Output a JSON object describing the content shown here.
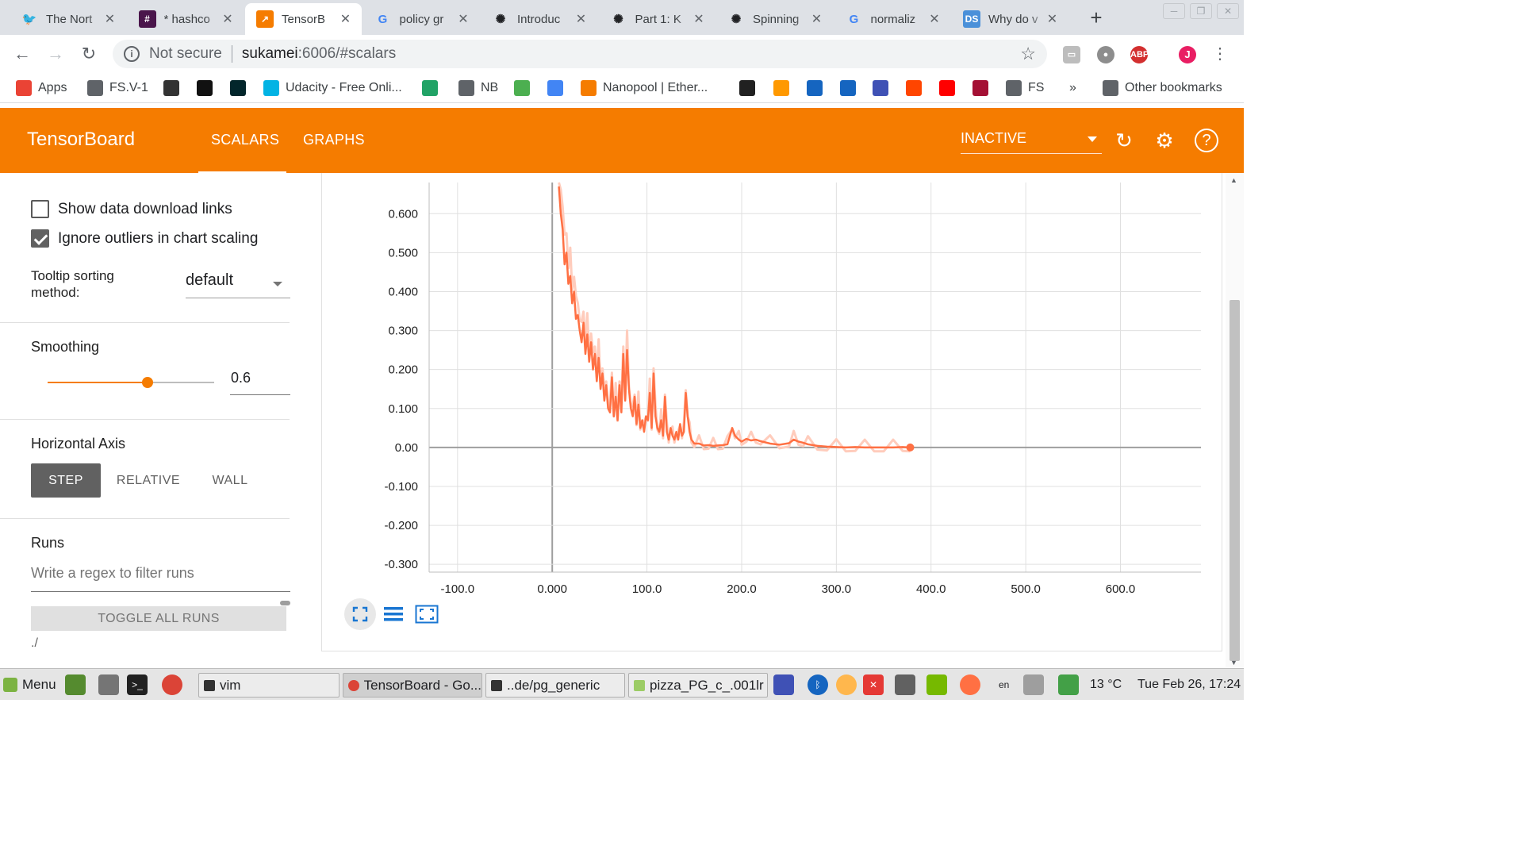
{
  "browser": {
    "tabs": [
      {
        "title": "The Nort",
        "icon": "twitter-icon",
        "color": "#1da1f2",
        "glyph": "🐦",
        "active": false
      },
      {
        "title": "* hashco",
        "icon": "slack-icon",
        "color": "#4a154b",
        "glyph": "#",
        "active": false
      },
      {
        "title": "TensorB",
        "icon": "tensorboard-icon",
        "color": "#f57c00",
        "glyph": "↗",
        "active": true
      },
      {
        "title": "policy gr",
        "icon": "google-icon",
        "color": "#4285f4",
        "glyph": "G",
        "active": false
      },
      {
        "title": "Introduc",
        "icon": "openai-icon",
        "color": "#202124",
        "glyph": "✺",
        "active": false
      },
      {
        "title": "Part 1: K",
        "icon": "openai-icon",
        "color": "#202124",
        "glyph": "✺",
        "active": false
      },
      {
        "title": "Spinning",
        "icon": "openai-icon",
        "color": "#202124",
        "glyph": "✺",
        "active": false
      },
      {
        "title": "normaliz",
        "icon": "google-icon",
        "color": "#4285f4",
        "glyph": "G",
        "active": false
      },
      {
        "title": "Why do v",
        "icon": "datascience-icon",
        "color": "#4a90d9",
        "glyph": "DS",
        "active": false
      }
    ],
    "address": {
      "secure_label": "Not secure",
      "host": "sukamei",
      "rest": ":6006/#scalars"
    },
    "bookmarks": [
      {
        "label": "Apps",
        "icon": "apps-grid-icon",
        "color": "#ea4335"
      },
      {
        "label": "FS.V-1",
        "icon": "page-icon",
        "color": "#5f6368"
      },
      {
        "label": "",
        "icon": "gtm-icon",
        "color": "#333333"
      },
      {
        "label": "",
        "icon": "42-icon",
        "color": "#111111"
      },
      {
        "label": "",
        "icon": "edx-icon",
        "color": "#02262b"
      },
      {
        "label": "Udacity - Free Onli...",
        "icon": "udacity-icon",
        "color": "#02b3e4"
      },
      {
        "label": "",
        "icon": "tc-icon",
        "color": "#21a366"
      },
      {
        "label": "NB",
        "icon": "page-icon",
        "color": "#5f6368"
      },
      {
        "label": "",
        "icon": "diamond-icon",
        "color": "#4caf50"
      },
      {
        "label": "",
        "icon": "fingerprint-icon",
        "color": "#4285f4"
      },
      {
        "label": "Nanopool | Ether...",
        "icon": "nanopool-icon",
        "color": "#f57c00"
      },
      {
        "label": "FS",
        "icon": "folder-icon",
        "color": "#5f6368"
      },
      {
        "label": "Other bookmarks",
        "icon": "folder-icon",
        "color": "#5f6368"
      }
    ],
    "overflow_label": "»"
  },
  "header": {
    "title": "TensorBoard",
    "tabs": [
      "SCALARS",
      "GRAPHS"
    ],
    "status": "INACTIVE"
  },
  "sidebar": {
    "show_download_links": "Show data download links",
    "ignore_outliers": "Ignore outliers in chart scaling",
    "ignore_outliers_checked": true,
    "show_download_checked": false,
    "tooltip_label_1": "Tooltip sorting",
    "tooltip_label_2": "method:",
    "tooltip_value": "default",
    "smoothing_label": "Smoothing",
    "smoothing_value": "0.6",
    "smoothing_fraction": 0.6,
    "axis_label": "Horizontal Axis",
    "axis_options": [
      "STEP",
      "RELATIVE",
      "WALL"
    ],
    "axis_selected": "STEP",
    "runs_label": "Runs",
    "runs_filter_placeholder": "Write a regex to filter runs",
    "toggle_all_label": "TOGGLE ALL RUNS",
    "run_name": "./"
  },
  "chart_data": {
    "type": "line",
    "title": "",
    "xlabel": "",
    "ylabel": "",
    "xlim": [
      -130,
      685
    ],
    "ylim": [
      -0.32,
      0.68
    ],
    "x_ticks": [
      "-100.0",
      "0.000",
      "100.0",
      "200.0",
      "300.0",
      "400.0",
      "500.0",
      "600.0"
    ],
    "x_tick_values": [
      -100,
      0,
      100,
      200,
      300,
      400,
      500,
      600
    ],
    "y_ticks": [
      "0.600",
      "0.500",
      "0.400",
      "0.300",
      "0.200",
      "0.100",
      "0.00",
      "-0.100",
      "-0.200",
      "-0.300"
    ],
    "y_tick_values": [
      0.6,
      0.5,
      0.4,
      0.3,
      0.2,
      0.1,
      0.0,
      -0.1,
      -0.2,
      -0.3
    ],
    "grid": true,
    "line_color": "#ff7043",
    "raw_color": "#ffccbc",
    "series": [
      {
        "x": [
          7,
          9,
          11,
          13,
          15,
          17,
          19,
          21,
          23,
          25,
          27,
          29,
          31,
          33,
          35,
          37,
          39,
          41,
          43,
          45,
          47,
          49,
          51,
          53,
          55,
          57,
          59,
          61,
          63,
          65,
          67,
          69,
          71,
          73,
          75,
          77,
          79,
          81,
          83,
          85,
          87,
          89,
          91,
          93,
          95,
          97,
          99,
          101,
          103,
          105,
          107,
          109,
          111,
          113,
          115,
          117,
          119,
          121,
          123,
          125,
          127,
          129,
          131,
          133,
          135,
          137,
          139,
          141,
          143,
          145,
          147,
          150,
          155,
          160,
          165,
          170,
          175,
          180,
          185,
          190,
          193,
          197,
          200,
          205,
          210,
          215,
          220,
          230,
          240,
          250,
          255,
          260,
          265,
          270,
          280,
          290,
          300,
          310,
          320,
          330,
          340,
          350,
          360,
          370,
          378
        ],
        "y": [
          0.67,
          0.6,
          0.56,
          0.47,
          0.5,
          0.42,
          0.44,
          0.37,
          0.4,
          0.33,
          0.34,
          0.3,
          0.27,
          0.32,
          0.24,
          0.29,
          0.22,
          0.27,
          0.2,
          0.24,
          0.17,
          0.23,
          0.15,
          0.19,
          0.12,
          0.16,
          0.1,
          0.09,
          0.18,
          0.08,
          0.13,
          0.07,
          0.16,
          0.09,
          0.24,
          0.12,
          0.25,
          0.15,
          0.1,
          0.08,
          0.13,
          0.06,
          0.11,
          0.05,
          0.07,
          0.04,
          0.08,
          0.07,
          0.14,
          0.05,
          0.19,
          0.08,
          0.05,
          0.04,
          0.07,
          0.03,
          0.13,
          0.04,
          0.02,
          0.05,
          0.03,
          0.02,
          0.04,
          0.02,
          0.06,
          0.03,
          0.04,
          0.14,
          0.08,
          0.04,
          0.02,
          0.01,
          0.01,
          0.005,
          0.006,
          0.004,
          0.005,
          0.006,
          0.008,
          0.05,
          0.03,
          0.02,
          0.015,
          0.022,
          0.018,
          0.02,
          0.016,
          0.01,
          0.007,
          0.011,
          0.02,
          0.015,
          0.012,
          0.008,
          0.004,
          0.002,
          0.001,
          0.0,
          0.001,
          0.0,
          0.0,
          0.0,
          0.0,
          0.001,
          0.0
        ]
      }
    ]
  },
  "taskbar": {
    "menu_label": "Menu",
    "tasks": [
      "vim",
      "TensorBoard - Go...",
      "..de/pg_generic",
      "pizza_PG_c_.001lr"
    ],
    "lang": "en",
    "weather": "13 °C",
    "clock": "Tue Feb 26, 17:24"
  }
}
